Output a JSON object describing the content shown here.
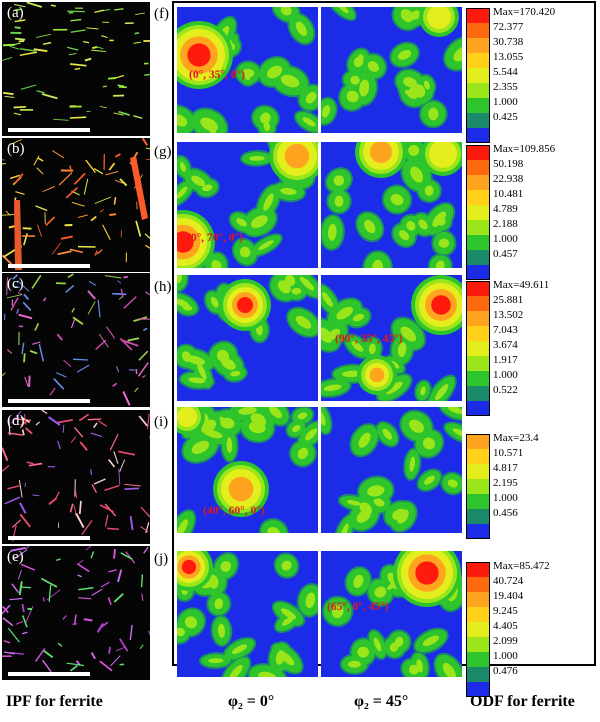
{
  "ipf_panels": [
    {
      "letter": "(a)"
    },
    {
      "letter": "(b)"
    },
    {
      "letter": "(c)"
    },
    {
      "letter": "(d)"
    },
    {
      "letter": "(e)"
    }
  ],
  "odf_rows": [
    {
      "letter": "(f)",
      "annotation": "(0°, 35°, 0°)",
      "annotation_panel": "phi0",
      "legend": [
        "Max=170.420",
        "72.377",
        "30.738",
        "13.055",
        "5.544",
        "2.355",
        "1.000",
        "0.425"
      ],
      "legend_colors": [
        "#ff1a0e",
        "#ff6a10",
        "#ffa41e",
        "#ffd11a",
        "#e5ee1d",
        "#9ae61b",
        "#2ec42b",
        "#1a8a6b",
        "#1c2be8"
      ]
    },
    {
      "letter": "(g)",
      "annotation": "(0°, 70°, 0°)",
      "annotation_panel": "phi0",
      "legend": [
        "Max=109.856",
        "50.198",
        "22.938",
        "10.481",
        "4.789",
        "2.188",
        "1.000",
        "0.457"
      ],
      "legend_colors": [
        "#ff1a0e",
        "#ff6a10",
        "#ffa41e",
        "#ffd11a",
        "#e5ee1d",
        "#9ae61b",
        "#2ec42b",
        "#1a8a6b",
        "#1c2be8"
      ]
    },
    {
      "letter": "(h)",
      "annotation": "(90°, 35°, 45°)",
      "annotation_panel": "phi45",
      "legend": [
        "Max=49.611",
        "25.881",
        "13.502",
        "7.043",
        "3.674",
        "1.917",
        "1.000",
        "0.522"
      ],
      "legend_colors": [
        "#ff1a0e",
        "#ff6a10",
        "#ffa41e",
        "#ffd11a",
        "#e5ee1d",
        "#9ae61b",
        "#2ec42b",
        "#1a8a6b",
        "#1c2be8"
      ]
    },
    {
      "letter": "(i)",
      "annotation": "(40°, 60°, 0°)",
      "annotation_panel": "phi0",
      "legend": [
        "Max=23.4",
        "10.571",
        "4.817",
        "2.195",
        "1.000",
        "0.456"
      ],
      "legend_colors": [
        "#ffa41e",
        "#ffd11a",
        "#e5ee1d",
        "#9ae61b",
        "#2ec42b",
        "#1a8a6b",
        "#1c2be8"
      ]
    },
    {
      "letter": "(j)",
      "annotation": "(65°, 0°, 45°)",
      "annotation_panel": "phi45",
      "legend": [
        "Max=85.472",
        "40.724",
        "19.404",
        "9.245",
        "4.405",
        "2.099",
        "1.000",
        "0.476"
      ],
      "legend_colors": [
        "#ff1a0e",
        "#ff6a10",
        "#ffa41e",
        "#ffd11a",
        "#e5ee1d",
        "#9ae61b",
        "#2ec42b",
        "#1a8a6b",
        "#1c2be8"
      ]
    }
  ],
  "captions": {
    "ipf": "IPF for ferrite",
    "phi0": "φ₂ = 0°",
    "phi45": "φ₂ = 45°",
    "odf": "ODF for ferrite"
  }
}
